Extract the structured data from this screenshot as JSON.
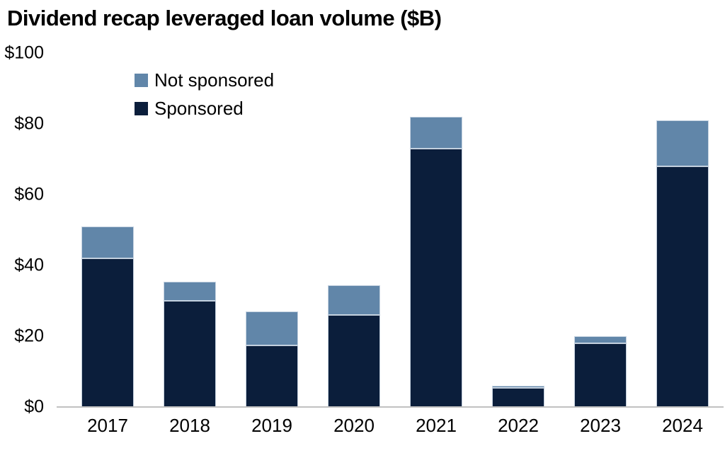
{
  "title": "Dividend recap leveraged loan volume ($B)",
  "legend": [
    {
      "label": "Not sponsored",
      "color": "#6186a9"
    },
    {
      "label": "Sponsored",
      "color": "#0b1e3b"
    }
  ],
  "chart_data": {
    "type": "bar",
    "stacked": true,
    "title": "Dividend recap leveraged loan volume ($B)",
    "categories": [
      "2017",
      "2018",
      "2019",
      "2020",
      "2021",
      "2022",
      "2023",
      "2024"
    ],
    "series": [
      {
        "name": "Not sponsored",
        "color": "#6186a9",
        "values": [
          9,
          5.5,
          9.5,
          8.5,
          9,
          0.5,
          2,
          13
        ]
      },
      {
        "name": "Sponsored",
        "color": "#0b1e3b",
        "values": [
          42,
          30,
          17.5,
          26,
          73,
          5.5,
          18,
          68
        ]
      }
    ],
    "totals": [
      51,
      35.5,
      27,
      34.5,
      82,
      6,
      20,
      81
    ],
    "xlabel": "",
    "ylabel": "",
    "ylim": [
      0,
      100
    ],
    "yticks": [
      {
        "value": 0,
        "label": "$0"
      },
      {
        "value": 20,
        "label": "$20"
      },
      {
        "value": 40,
        "label": "$40"
      },
      {
        "value": 60,
        "label": "$60"
      },
      {
        "value": 80,
        "label": "$80"
      },
      {
        "value": 100,
        "label": "$100"
      }
    ],
    "grid": false,
    "legend_position": "top-left-inside"
  },
  "colors": {
    "background": "#ffffff",
    "text": "#000000",
    "axis_line": "#c1c1c1",
    "bar_border": "#cbd7e4"
  }
}
